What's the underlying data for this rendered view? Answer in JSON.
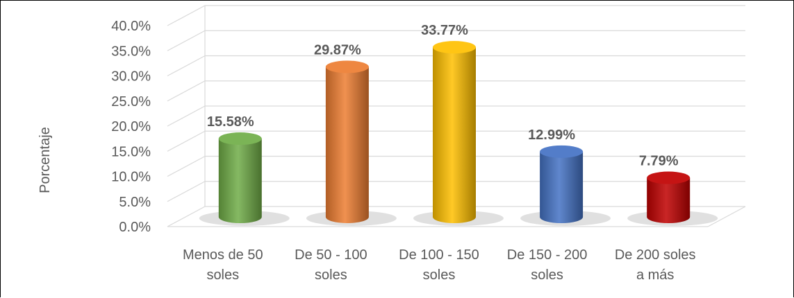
{
  "chart_data": {
    "type": "bar",
    "style": "3d-cylinder",
    "title": "",
    "xlabel": "",
    "ylabel": "Porcentaje",
    "ylim": [
      0,
      40
    ],
    "y_ticks": [
      "0.0%",
      "5.0%",
      "10.0%",
      "15.0%",
      "20.0%",
      "25.0%",
      "30.0%",
      "35.0%",
      "40.0%"
    ],
    "categories": [
      [
        "Menos de 50",
        "soles"
      ],
      [
        "De 50 - 100",
        "soles"
      ],
      [
        "De 100 - 150",
        "soles"
      ],
      [
        "De 150 - 200",
        "soles"
      ],
      [
        "De 200 soles",
        "a más"
      ]
    ],
    "values": [
      15.58,
      29.87,
      33.77,
      12.99,
      7.79
    ],
    "data_labels": [
      "15.58%",
      "29.87%",
      "33.77%",
      "12.99%",
      "7.79%"
    ],
    "colors": [
      "#70ad47",
      "#ed7d31",
      "#ffc000",
      "#4472c4",
      "#c00000"
    ],
    "grid": true,
    "legend": "none"
  }
}
